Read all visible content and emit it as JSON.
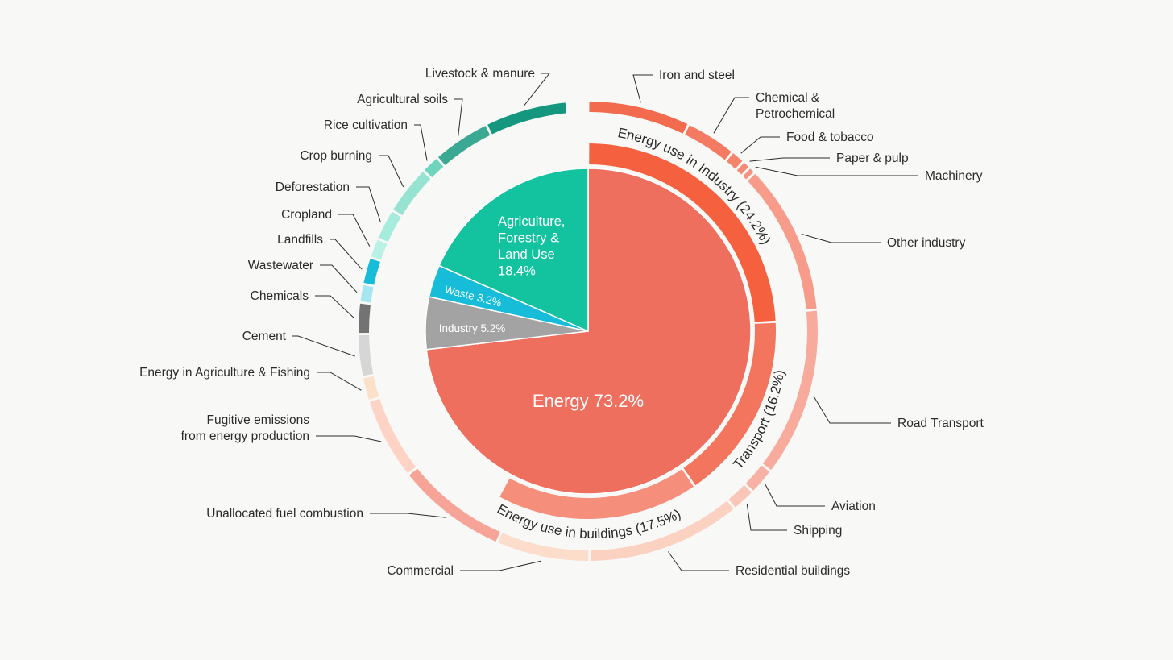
{
  "chart_data": {
    "type": "pie",
    "sectors": [
      {
        "name": "Energy",
        "value": 73.2,
        "color": "#ef6f5f"
      },
      {
        "name": "Industry",
        "value": 5.2,
        "color": "#a3a3a3"
      },
      {
        "name": "Waste",
        "value": 3.2,
        "color": "#17bcd9"
      },
      {
        "name": "Agriculture, Forestry & Land Use",
        "value": 18.4,
        "color": "#13c29f"
      }
    ],
    "sector_labels": {
      "energy": "Energy  73.2%",
      "industry": "Industry  5.2%",
      "waste": "Waste  3.2%",
      "agri": [
        "Agriculture,",
        "Forestry &",
        "Land Use",
        "18.4%"
      ]
    },
    "energy_categories": [
      {
        "name": "Energy use in Industry",
        "value": 24.2,
        "label": "Energy use in Industry  (24.2%)",
        "color": "#f5613f"
      },
      {
        "name": "Transport",
        "value": 16.2,
        "label": "Transport  (16.2%)",
        "color": "#f4755e"
      },
      {
        "name": "Energy use in buildings",
        "value": 17.5,
        "label": "Energy use in buildings  (17.5%)",
        "color": "#f58e7a"
      }
    ],
    "subsectors": [
      {
        "name": "Iron and steel",
        "value": 7.2,
        "color": "#f36b4f",
        "label_lines": [
          "Iron and steel"
        ]
      },
      {
        "name": "Chemical & Petrochemical",
        "value": 3.6,
        "color": "#f47a62",
        "label_lines": [
          "Chemical &",
          "Petrochemical"
        ]
      },
      {
        "name": "Food & tobacco",
        "value": 1.0,
        "color": "#f5846d",
        "label_lines": [
          "Food & tobacco"
        ]
      },
      {
        "name": "Paper & pulp",
        "value": 0.6,
        "color": "#f58b76",
        "label_lines": [
          "Paper & pulp"
        ]
      },
      {
        "name": "Machinery",
        "value": 0.5,
        "color": "#f69280",
        "label_lines": [
          "Machinery"
        ]
      },
      {
        "name": "Other industry",
        "value": 10.6,
        "color": "#f79c8b",
        "label_lines": [
          "Other industry"
        ]
      },
      {
        "name": "Road Transport",
        "value": 11.9,
        "color": "#f8ab9d",
        "label_lines": [
          "Road Transport"
        ]
      },
      {
        "name": "Aviation",
        "value": 1.9,
        "color": "#f8b2a5",
        "label_lines": [
          "Aviation"
        ]
      },
      {
        "name": "Shipping",
        "value": 1.7,
        "color": "#f9c6b7",
        "label_lines": [
          "Shipping"
        ]
      },
      {
        "name": "Residential buildings",
        "value": 10.9,
        "color": "#fbd2c2",
        "label_lines": [
          "Residential buildings"
        ]
      },
      {
        "name": "Commercial",
        "value": 6.6,
        "color": "#fcdcca",
        "label_lines": [
          "Commercial"
        ]
      },
      {
        "name": "Unallocated fuel combustion",
        "value": 7.8,
        "color": "#f5a497",
        "label_lines": [
          "Unallocated fuel combustion"
        ]
      },
      {
        "name": "Fugitive emissions from energy production",
        "value": 5.8,
        "color": "#fcd3c4",
        "label_lines": [
          "Fugitive emissions",
          "from energy production"
        ]
      },
      {
        "name": "Energy in Agriculture & Fishing",
        "value": 1.7,
        "color": "#fde0ca",
        "label_lines": [
          "Energy in Agriculture & Fishing"
        ]
      },
      {
        "name": "Cement",
        "value": 3.0,
        "color": "#d6d6d6",
        "label_lines": [
          "Cement"
        ]
      },
      {
        "name": "Chemicals",
        "value": 2.2,
        "color": "#737373",
        "label_lines": [
          "Chemicals"
        ]
      },
      {
        "name": "Wastewater",
        "value": 1.3,
        "color": "#a6e6f0",
        "label_lines": [
          "Wastewater"
        ]
      },
      {
        "name": "Landfills",
        "value": 1.9,
        "color": "#17bcd9",
        "label_lines": [
          "Landfills"
        ]
      },
      {
        "name": "Cropland",
        "value": 1.4,
        "color": "#b9f2e4",
        "label_lines": [
          "Cropland"
        ]
      },
      {
        "name": "Deforestation",
        "value": 2.2,
        "color": "#a5ecdc",
        "label_lines": [
          "Deforestation"
        ]
      },
      {
        "name": "Crop burning",
        "value": 3.5,
        "color": "#97e3d2",
        "label_lines": [
          "Crop burning"
        ]
      },
      {
        "name": "Rice cultivation",
        "value": 1.3,
        "color": "#6fd5be",
        "label_lines": [
          "Rice cultivation"
        ]
      },
      {
        "name": "Agricultural soils",
        "value": 4.1,
        "color": "#3aa892",
        "label_lines": [
          "Agricultural soils"
        ]
      },
      {
        "name": "Livestock & manure",
        "value": 5.8,
        "color": "#14977e",
        "label_lines": [
          "Livestock & manure"
        ]
      }
    ]
  }
}
